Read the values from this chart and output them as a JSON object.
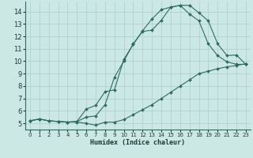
{
  "xlabel": "Humidex (Indice chaleur)",
  "background_color": "#cce8e4",
  "grid_color": "#aacfcb",
  "line_color": "#2d6e62",
  "xlim": [
    -0.5,
    23.5
  ],
  "ylim": [
    4.5,
    14.8
  ],
  "yticks": [
    5,
    6,
    7,
    8,
    9,
    10,
    11,
    12,
    13,
    14
  ],
  "xticks": [
    0,
    1,
    2,
    3,
    4,
    5,
    6,
    7,
    8,
    9,
    10,
    11,
    12,
    13,
    14,
    15,
    16,
    17,
    18,
    19,
    20,
    21,
    22,
    23
  ],
  "line1_x": [
    0,
    1,
    2,
    3,
    4,
    5,
    6,
    7,
    8,
    9,
    10,
    11,
    12,
    13,
    14,
    15,
    16,
    17,
    18,
    19,
    20,
    21,
    22,
    23
  ],
  "line1_y": [
    5.2,
    5.35,
    5.2,
    5.15,
    5.1,
    5.1,
    5.0,
    4.85,
    5.1,
    5.1,
    5.3,
    5.7,
    6.1,
    6.5,
    7.0,
    7.5,
    8.0,
    8.5,
    9.0,
    9.2,
    9.4,
    9.55,
    9.65,
    9.8
  ],
  "line2_x": [
    0,
    1,
    2,
    3,
    4,
    5,
    6,
    7,
    8,
    9,
    10,
    11,
    12,
    13,
    14,
    15,
    16,
    17,
    18,
    19,
    20,
    21,
    22,
    23
  ],
  "line2_y": [
    5.2,
    5.35,
    5.2,
    5.15,
    5.1,
    5.15,
    6.15,
    6.45,
    7.55,
    7.7,
    10.15,
    11.35,
    12.45,
    13.4,
    14.15,
    14.35,
    14.5,
    13.8,
    13.25,
    11.4,
    10.45,
    9.95,
    9.75,
    9.75
  ],
  "line3_x": [
    0,
    1,
    2,
    3,
    4,
    5,
    6,
    7,
    8,
    9,
    10,
    11,
    12,
    13,
    14,
    15,
    16,
    17,
    18,
    19,
    20,
    21,
    22,
    23
  ],
  "line3_y": [
    5.2,
    5.35,
    5.2,
    5.15,
    5.1,
    5.15,
    5.5,
    5.6,
    6.5,
    8.7,
    10.0,
    11.4,
    12.4,
    12.5,
    13.3,
    14.35,
    14.5,
    14.5,
    13.9,
    13.25,
    11.4,
    10.45,
    10.5,
    9.75
  ]
}
